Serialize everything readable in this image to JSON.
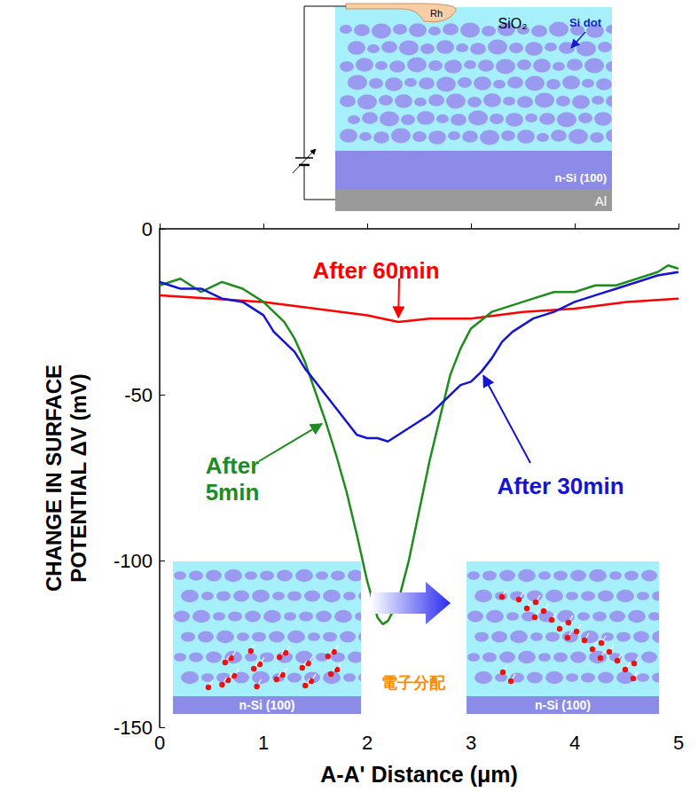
{
  "chart_data": {
    "type": "line",
    "x_label": "A-A' Distance (μm)",
    "y_label": "CHANGE IN SURFACE POTENTIAL ΔV (mV)",
    "xlim": [
      0,
      5
    ],
    "xticks": [
      0,
      1,
      2,
      3,
      4,
      5
    ],
    "ylim": [
      -150,
      0
    ],
    "yticks": [
      -150,
      -100,
      -50,
      0
    ],
    "grid": false,
    "series": [
      {
        "name": "After 60min",
        "color": "#ff0000",
        "x": [
          0,
          0.5,
          1.0,
          1.5,
          2.0,
          2.3,
          2.6,
          3.0,
          3.5,
          4.0,
          4.5,
          5.0
        ],
        "values": [
          -20,
          -21,
          -22,
          -24,
          -26,
          -28,
          -27,
          -27,
          -25,
          -24,
          -22,
          -21
        ]
      },
      {
        "name": "After 5min",
        "color": "#1e8c1e",
        "x": [
          0,
          0.2,
          0.4,
          0.6,
          0.8,
          1.0,
          1.1,
          1.2,
          1.3,
          1.4,
          1.5,
          1.6,
          1.7,
          1.8,
          1.9,
          2.0,
          2.1,
          2.15,
          2.2,
          2.3,
          2.4,
          2.5,
          2.6,
          2.7,
          2.8,
          2.9,
          3.0,
          3.2,
          3.4,
          3.6,
          3.8,
          4.0,
          4.2,
          4.4,
          4.6,
          4.8,
          4.9,
          5.0
        ],
        "values": [
          -17,
          -15,
          -19,
          -16,
          -18,
          -22,
          -25,
          -28,
          -33,
          -40,
          -49,
          -58,
          -68,
          -79,
          -92,
          -106,
          -117,
          -119,
          -118,
          -112,
          -100,
          -85,
          -70,
          -57,
          -44,
          -36,
          -30,
          -25,
          -23,
          -21,
          -19,
          -19,
          -17,
          -17,
          -15,
          -13,
          -11,
          -12
        ]
      },
      {
        "name": "After 30min",
        "color": "#1414d2",
        "x": [
          0,
          0.2,
          0.4,
          0.6,
          0.8,
          1.0,
          1.1,
          1.2,
          1.3,
          1.4,
          1.5,
          1.6,
          1.7,
          1.8,
          1.9,
          2.0,
          2.1,
          2.2,
          2.3,
          2.4,
          2.5,
          2.6,
          2.7,
          2.8,
          2.9,
          3.0,
          3.1,
          3.2,
          3.3,
          3.4,
          3.6,
          3.8,
          4.0,
          4.2,
          4.4,
          4.6,
          4.8,
          5.0
        ],
        "values": [
          -16,
          -18,
          -18,
          -21,
          -22,
          -26,
          -31,
          -34,
          -37,
          -42,
          -46,
          -50,
          -54,
          -58,
          -62,
          -63,
          -63,
          -64,
          -62,
          -60,
          -58,
          -56,
          -53,
          -50,
          -47,
          -46,
          -43,
          -39,
          -34,
          -31,
          -27,
          -25,
          -22,
          -20,
          -18,
          -16,
          -14,
          -13
        ]
      }
    ]
  },
  "diagram": {
    "probe": "Rh",
    "oxide": "SiO₂",
    "dot": "Si dot",
    "substrate": "n-Si (100)",
    "electrode": "Al"
  },
  "insets": {
    "substrate": "n-Si (100)",
    "arrow_label": "電子分配"
  }
}
